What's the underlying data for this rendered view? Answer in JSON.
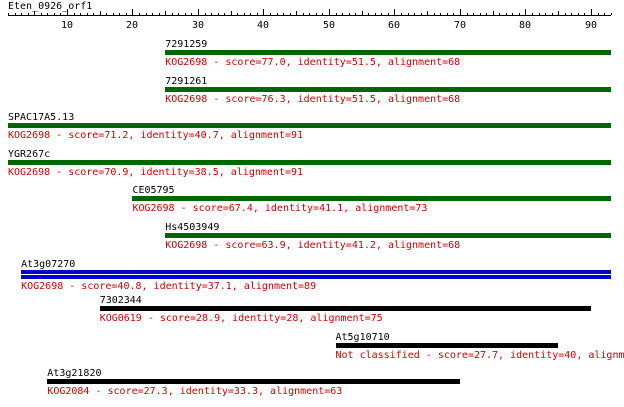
{
  "query": {
    "name": "Eten_0926_orf1",
    "length": 93
  },
  "axis": {
    "min": 1,
    "max": 93,
    "ticks": [
      10,
      20,
      30,
      40,
      50,
      60,
      70,
      80,
      90
    ]
  },
  "colors": {
    "green": "#006600",
    "blue": "#0000cc",
    "black": "#000000",
    "meta": "#cc0000"
  },
  "hits": [
    {
      "name": "7291259",
      "kog": "KOG2698",
      "score": "77.0",
      "identity": "51.5",
      "alignment": "68",
      "start": 25,
      "end": 93,
      "color": "green",
      "meta": "KOG2698 - score=77.0, identity=51.5, alignment=68"
    },
    {
      "name": "7291261",
      "kog": "KOG2698",
      "score": "76.3",
      "identity": "51.5",
      "alignment": "68",
      "start": 25,
      "end": 93,
      "color": "green",
      "meta": "KOG2698 - score=76.3, identity=51.5, alignment=68"
    },
    {
      "name": "SPAC17A5.13",
      "kog": "KOG2698",
      "score": "71.2",
      "identity": "40.7",
      "alignment": "91",
      "start": 1,
      "end": 93,
      "color": "green",
      "meta": "KOG2698 - score=71.2, identity=40.7, alignment=91"
    },
    {
      "name": "YGR267c",
      "kog": "KOG2698",
      "score": "70.9",
      "identity": "38.5",
      "alignment": "91",
      "start": 1,
      "end": 93,
      "color": "green",
      "meta": "KOG2698 - score=70.9, identity=38.5, alignment=91"
    },
    {
      "name": "CE05795",
      "kog": "KOG2698",
      "score": "67.4",
      "identity": "41.1",
      "alignment": "73",
      "start": 20,
      "end": 93,
      "color": "green",
      "meta": "KOG2698 - score=67.4, identity=41.1, alignment=73"
    },
    {
      "name": "Hs4503949",
      "kog": "KOG2698",
      "score": "63.9",
      "identity": "41.2",
      "alignment": "68",
      "start": 25,
      "end": 93,
      "color": "green",
      "meta": "KOG2698 - score=63.9, identity=41.2, alignment=68"
    },
    {
      "name": "At3g07270",
      "kog": "KOG2698",
      "score": "40.8",
      "identity": "37.1",
      "alignment": "89",
      "start": 3,
      "end": 93,
      "color": "blue",
      "meta": "KOG2698 - score=40.8, identity=37.1, alignment=89"
    },
    {
      "name": "7302344",
      "kog": "KOG0619",
      "score": "28.9",
      "identity": "28",
      "alignment": "75",
      "start": 15,
      "end": 90,
      "color": "black",
      "meta": "KOG0619 - score=28.9, identity=28, alignment=75"
    },
    {
      "name": "At5g10710",
      "kog": "Not classified",
      "score": "27.7",
      "identity": "40",
      "alignment": "",
      "start": 51,
      "end": 85,
      "color": "black",
      "meta": "Not classified - score=27.7, identity=40, alignm"
    },
    {
      "name": "At3g21820",
      "kog": "KOG2084",
      "score": "27.3",
      "identity": "33.3",
      "alignment": "63",
      "start": 7,
      "end": 70,
      "color": "black",
      "meta": "KOG2084 - score=27.3, identity=33.3, alignment=63"
    }
  ]
}
